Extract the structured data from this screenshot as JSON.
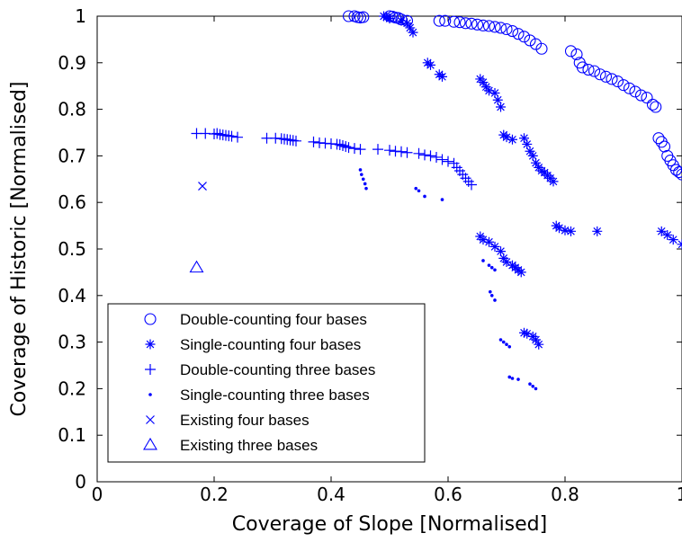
{
  "chart_data": {
    "type": "scatter",
    "xlabel": "Coverage of Slope [Normalised]",
    "ylabel": "Coverage of Historic [Normalised]",
    "xlim": [
      0,
      1
    ],
    "ylim": [
      0,
      1
    ],
    "xticks": [
      0,
      0.2,
      0.4,
      0.6,
      0.8,
      1
    ],
    "yticks": [
      0,
      0.1,
      0.2,
      0.3,
      0.4,
      0.5,
      0.6,
      0.7,
      0.8,
      0.9,
      1
    ],
    "xtick_labels": [
      "0",
      "0.2",
      "0.4",
      "0.6",
      "0.8",
      "1"
    ],
    "ytick_labels": [
      "0",
      "0.1",
      "0.2",
      "0.3",
      "0.4",
      "0.5",
      "0.6",
      "0.7",
      "0.8",
      "0.9",
      "1"
    ],
    "grid": false,
    "legend_position": "bottom-left",
    "color": "#0000ff",
    "series": [
      {
        "name": "Double-counting four bases",
        "marker": "circle",
        "points": [
          [
            0.43,
            1.0
          ],
          [
            0.44,
            1.0
          ],
          [
            0.445,
            0.998
          ],
          [
            0.45,
            0.997
          ],
          [
            0.455,
            0.998
          ],
          [
            0.5,
            1.0
          ],
          [
            0.505,
            0.999
          ],
          [
            0.51,
            0.997
          ],
          [
            0.515,
            0.996
          ],
          [
            0.52,
            0.993
          ],
          [
            0.53,
            0.99
          ],
          [
            0.585,
            0.99
          ],
          [
            0.595,
            0.99
          ],
          [
            0.61,
            0.988
          ],
          [
            0.62,
            0.987
          ],
          [
            0.63,
            0.985
          ],
          [
            0.64,
            0.984
          ],
          [
            0.65,
            0.982
          ],
          [
            0.66,
            0.98
          ],
          [
            0.67,
            0.979
          ],
          [
            0.68,
            0.977
          ],
          [
            0.69,
            0.975
          ],
          [
            0.7,
            0.972
          ],
          [
            0.71,
            0.968
          ],
          [
            0.72,
            0.962
          ],
          [
            0.73,
            0.956
          ],
          [
            0.74,
            0.948
          ],
          [
            0.75,
            0.94
          ],
          [
            0.76,
            0.93
          ],
          [
            0.81,
            0.925
          ],
          [
            0.82,
            0.918
          ],
          [
            0.825,
            0.9
          ],
          [
            0.83,
            0.89
          ],
          [
            0.84,
            0.885
          ],
          [
            0.85,
            0.882
          ],
          [
            0.86,
            0.875
          ],
          [
            0.87,
            0.87
          ],
          [
            0.88,
            0.865
          ],
          [
            0.89,
            0.86
          ],
          [
            0.9,
            0.852
          ],
          [
            0.91,
            0.845
          ],
          [
            0.92,
            0.838
          ],
          [
            0.93,
            0.83
          ],
          [
            0.94,
            0.825
          ],
          [
            0.95,
            0.81
          ],
          [
            0.955,
            0.805
          ],
          [
            0.96,
            0.738
          ],
          [
            0.965,
            0.73
          ],
          [
            0.97,
            0.72
          ],
          [
            0.975,
            0.7
          ],
          [
            0.98,
            0.69
          ],
          [
            0.985,
            0.68
          ],
          [
            0.99,
            0.67
          ],
          [
            0.995,
            0.665
          ],
          [
            1.0,
            0.66
          ]
        ]
      },
      {
        "name": "Single-counting four bases",
        "marker": "asterisk",
        "points": [
          [
            0.49,
            1.0
          ],
          [
            0.495,
            0.998
          ],
          [
            0.5,
            0.995
          ],
          [
            0.52,
            0.99
          ],
          [
            0.53,
            0.985
          ],
          [
            0.535,
            0.975
          ],
          [
            0.54,
            0.965
          ],
          [
            0.565,
            0.9
          ],
          [
            0.57,
            0.895
          ],
          [
            0.585,
            0.875
          ],
          [
            0.59,
            0.87
          ],
          [
            0.655,
            0.865
          ],
          [
            0.66,
            0.858
          ],
          [
            0.665,
            0.848
          ],
          [
            0.67,
            0.84
          ],
          [
            0.68,
            0.835
          ],
          [
            0.685,
            0.82
          ],
          [
            0.69,
            0.805
          ],
          [
            0.695,
            0.745
          ],
          [
            0.7,
            0.74
          ],
          [
            0.71,
            0.735
          ],
          [
            0.73,
            0.738
          ],
          [
            0.735,
            0.725
          ],
          [
            0.74,
            0.71
          ],
          [
            0.745,
            0.7
          ],
          [
            0.75,
            0.685
          ],
          [
            0.755,
            0.675
          ],
          [
            0.76,
            0.668
          ],
          [
            0.765,
            0.664
          ],
          [
            0.77,
            0.658
          ],
          [
            0.775,
            0.652
          ],
          [
            0.78,
            0.645
          ],
          [
            0.785,
            0.55
          ],
          [
            0.79,
            0.545
          ],
          [
            0.8,
            0.54
          ],
          [
            0.81,
            0.538
          ],
          [
            0.855,
            0.538
          ],
          [
            0.965,
            0.538
          ],
          [
            0.975,
            0.53
          ],
          [
            0.985,
            0.52
          ],
          [
            1.0,
            0.51
          ],
          [
            0.655,
            0.527
          ],
          [
            0.66,
            0.52
          ],
          [
            0.67,
            0.515
          ],
          [
            0.68,
            0.505
          ],
          [
            0.69,
            0.495
          ],
          [
            0.695,
            0.48
          ],
          [
            0.7,
            0.472
          ],
          [
            0.71,
            0.465
          ],
          [
            0.715,
            0.46
          ],
          [
            0.72,
            0.455
          ],
          [
            0.725,
            0.45
          ],
          [
            0.73,
            0.32
          ],
          [
            0.735,
            0.318
          ],
          [
            0.745,
            0.312
          ],
          [
            0.75,
            0.305
          ],
          [
            0.755,
            0.295
          ]
        ]
      },
      {
        "name": "Double-counting three bases",
        "marker": "plus",
        "points": [
          [
            0.17,
            0.748
          ],
          [
            0.185,
            0.748
          ],
          [
            0.2,
            0.747
          ],
          [
            0.205,
            0.748
          ],
          [
            0.21,
            0.746
          ],
          [
            0.215,
            0.745
          ],
          [
            0.22,
            0.744
          ],
          [
            0.225,
            0.743
          ],
          [
            0.23,
            0.742
          ],
          [
            0.24,
            0.74
          ],
          [
            0.29,
            0.738
          ],
          [
            0.305,
            0.738
          ],
          [
            0.315,
            0.737
          ],
          [
            0.32,
            0.736
          ],
          [
            0.325,
            0.735
          ],
          [
            0.33,
            0.734
          ],
          [
            0.335,
            0.733
          ],
          [
            0.34,
            0.732
          ],
          [
            0.37,
            0.73
          ],
          [
            0.38,
            0.728
          ],
          [
            0.39,
            0.727
          ],
          [
            0.4,
            0.726
          ],
          [
            0.41,
            0.725
          ],
          [
            0.415,
            0.724
          ],
          [
            0.42,
            0.722
          ],
          [
            0.425,
            0.72
          ],
          [
            0.43,
            0.718
          ],
          [
            0.44,
            0.716
          ],
          [
            0.45,
            0.714
          ],
          [
            0.48,
            0.714
          ],
          [
            0.5,
            0.712
          ],
          [
            0.51,
            0.71
          ],
          [
            0.52,
            0.709
          ],
          [
            0.53,
            0.707
          ],
          [
            0.55,
            0.705
          ],
          [
            0.56,
            0.702
          ],
          [
            0.57,
            0.7
          ],
          [
            0.58,
            0.697
          ],
          [
            0.59,
            0.692
          ],
          [
            0.6,
            0.688
          ],
          [
            0.61,
            0.684
          ],
          [
            0.615,
            0.675
          ],
          [
            0.62,
            0.668
          ],
          [
            0.625,
            0.66
          ],
          [
            0.63,
            0.652
          ],
          [
            0.635,
            0.645
          ],
          [
            0.64,
            0.638
          ]
        ]
      },
      {
        "name": "Single-counting three bases",
        "marker": "dot",
        "points": [
          [
            0.45,
            0.67
          ],
          [
            0.452,
            0.66
          ],
          [
            0.455,
            0.65
          ],
          [
            0.458,
            0.64
          ],
          [
            0.46,
            0.63
          ],
          [
            0.545,
            0.63
          ],
          [
            0.55,
            0.625
          ],
          [
            0.56,
            0.613
          ],
          [
            0.59,
            0.606
          ],
          [
            0.66,
            0.475
          ],
          [
            0.67,
            0.465
          ],
          [
            0.675,
            0.46
          ],
          [
            0.68,
            0.455
          ],
          [
            0.672,
            0.408
          ],
          [
            0.675,
            0.4
          ],
          [
            0.68,
            0.39
          ],
          [
            0.69,
            0.305
          ],
          [
            0.695,
            0.3
          ],
          [
            0.7,
            0.295
          ],
          [
            0.705,
            0.29
          ],
          [
            0.705,
            0.225
          ],
          [
            0.71,
            0.222
          ],
          [
            0.72,
            0.22
          ],
          [
            0.74,
            0.21
          ],
          [
            0.745,
            0.205
          ],
          [
            0.75,
            0.2
          ]
        ]
      },
      {
        "name": "Existing four bases",
        "marker": "x",
        "points": [
          [
            0.18,
            0.635
          ]
        ]
      },
      {
        "name": "Existing three bases",
        "marker": "triangle",
        "points": [
          [
            0.17,
            0.46
          ]
        ]
      }
    ]
  }
}
